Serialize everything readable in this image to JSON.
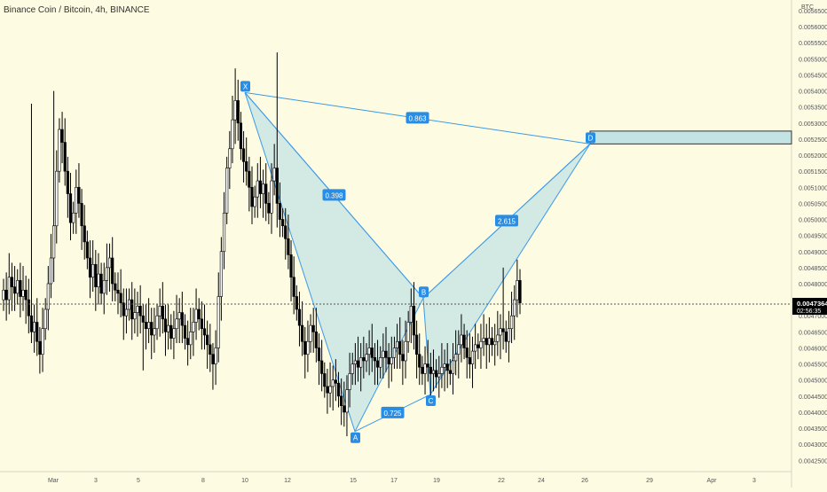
{
  "header": {
    "title": "Binance Coin / Bitcoin, 4h, BINANCE"
  },
  "price_axis": {
    "unit": "BTC",
    "last_price_label": "0.0047364",
    "countdown_label": "02:56:35",
    "ticks": [
      "0.0056500",
      "0.0056000",
      "0.0055500",
      "0.0055000",
      "0.0054500",
      "0.0054000",
      "0.0053500",
      "0.0053000",
      "0.0052500",
      "0.0052000",
      "0.0051500",
      "0.0051000",
      "0.0050500",
      "0.0050000",
      "0.0049500",
      "0.0049000",
      "0.0048500",
      "0.0048000",
      "0.0047500",
      "0.0047000",
      "0.0046500",
      "0.0046000",
      "0.0045500",
      "0.0045000",
      "0.0044500",
      "0.0044000",
      "0.0043500",
      "0.0043000",
      "0.0042500"
    ]
  },
  "time_axis": {
    "ticks": [
      "Mar",
      "3",
      "5",
      "8",
      "10",
      "12",
      "15",
      "17",
      "19",
      "22",
      "24",
      "26",
      "29",
      "Apr",
      "3"
    ]
  },
  "colors": {
    "background": "#fdfbe1",
    "up": "#ffffff",
    "down": "#000000",
    "pattern_line": "#3c9ae8",
    "pattern_fill": "#9ed3e8",
    "label_bg": "#2a8de4",
    "label_text": "#ffffff",
    "axis_text": "#555555",
    "last_price_bg": "#000000"
  },
  "chart_data": {
    "type": "candlestick",
    "title": "Binance Coin / Bitcoin, 4h, BINANCE",
    "y_unit": "BTC",
    "ylim": [
      0.0042,
      0.00568
    ],
    "last_price": 0.0047364,
    "grid": false,
    "pattern": {
      "name": "harmonic XABCD",
      "points": [
        {
          "label": "X",
          "date": "Mar 10",
          "price": 0.005395
        },
        {
          "label": "A",
          "date": "Mar 15",
          "price": 0.00434
        },
        {
          "label": "B",
          "date": "Mar 18",
          "price": 0.004755
        },
        {
          "label": "C",
          "date": "Mar 19",
          "price": 0.004455
        },
        {
          "label": "D",
          "date": "Mar 26",
          "price": 0.005235
        }
      ],
      "ratios": [
        {
          "value": "0.398",
          "between": [
            "X",
            "B"
          ]
        },
        {
          "value": "0.725",
          "between": [
            "A",
            "C"
          ]
        },
        {
          "value": "2.615",
          "between": [
            "B",
            "D"
          ]
        },
        {
          "value": "0.863",
          "between": [
            "X",
            "D"
          ]
        }
      ],
      "target_zone": {
        "from": "Mar 26",
        "price_top": 0.005275,
        "price_bottom": 0.005235
      }
    },
    "candles_close": [
      0.00478,
      0.00475,
      0.00482,
      0.00479,
      0.00477,
      0.00481,
      0.00476,
      0.00478,
      0.00475,
      0.0047,
      0.00465,
      0.00468,
      0.00462,
      0.00458,
      0.00466,
      0.00472,
      0.0048,
      0.00488,
      0.00498,
      0.00515,
      0.00528,
      0.00524,
      0.00515,
      0.00508,
      0.00499,
      0.00502,
      0.0051,
      0.00505,
      0.00498,
      0.00493,
      0.00488,
      0.00482,
      0.00486,
      0.00479,
      0.00483,
      0.00477,
      0.00481,
      0.00485,
      0.00488,
      0.0048,
      0.00478,
      0.00477,
      0.00474,
      0.0047,
      0.00472,
      0.00475,
      0.00469,
      0.00471,
      0.00473,
      0.0047,
      0.00468,
      0.00466,
      0.00468,
      0.00464,
      0.00466,
      0.0047,
      0.00473,
      0.00469,
      0.00465,
      0.00467,
      0.00463,
      0.00466,
      0.00469,
      0.00471,
      0.00467,
      0.00463,
      0.00461,
      0.00465,
      0.00468,
      0.00472,
      0.00469,
      0.00466,
      0.00464,
      0.00461,
      0.00458,
      0.00455,
      0.0046,
      0.00476,
      0.0049,
      0.00502,
      0.00516,
      0.00522,
      0.00531,
      0.00537,
      0.0053,
      0.00522,
      0.00518,
      0.00515,
      0.0051,
      0.00504,
      0.00507,
      0.00512,
      0.00508,
      0.00511,
      0.00505,
      0.00502,
      0.00512,
      0.00516,
      0.00505,
      0.005,
      0.00498,
      0.00494,
      0.00489,
      0.00482,
      0.00476,
      0.00472,
      0.00467,
      0.00462,
      0.00458,
      0.00462,
      0.00467,
      0.00465,
      0.0046,
      0.00456,
      0.00452,
      0.00448,
      0.00446,
      0.00448,
      0.0045,
      0.00449,
      0.00445,
      0.00442,
      0.0044,
      0.00447,
      0.00452,
      0.00455,
      0.00456,
      0.00454,
      0.00457,
      0.00456,
      0.00458,
      0.0046,
      0.00457,
      0.00456,
      0.00454,
      0.00457,
      0.00459,
      0.00457,
      0.00455,
      0.00457,
      0.0046,
      0.00462,
      0.00458,
      0.00456,
      0.00462,
      0.00468,
      0.00473,
      0.00464,
      0.00458,
      0.00454,
      0.00452,
      0.00455,
      0.00454,
      0.00452,
      0.00453,
      0.00451,
      0.00452,
      0.00454,
      0.00455,
      0.00453,
      0.00452,
      0.00456,
      0.00458,
      0.00461,
      0.00464,
      0.0046,
      0.00457,
      0.00455,
      0.00459,
      0.00461,
      0.0046,
      0.00462,
      0.00463,
      0.00461,
      0.00463,
      0.00461,
      0.00462,
      0.00464,
      0.00466,
      0.00465,
      0.00462,
      0.00466,
      0.0047,
      0.00475,
      0.00481,
      0.00474
    ]
  }
}
